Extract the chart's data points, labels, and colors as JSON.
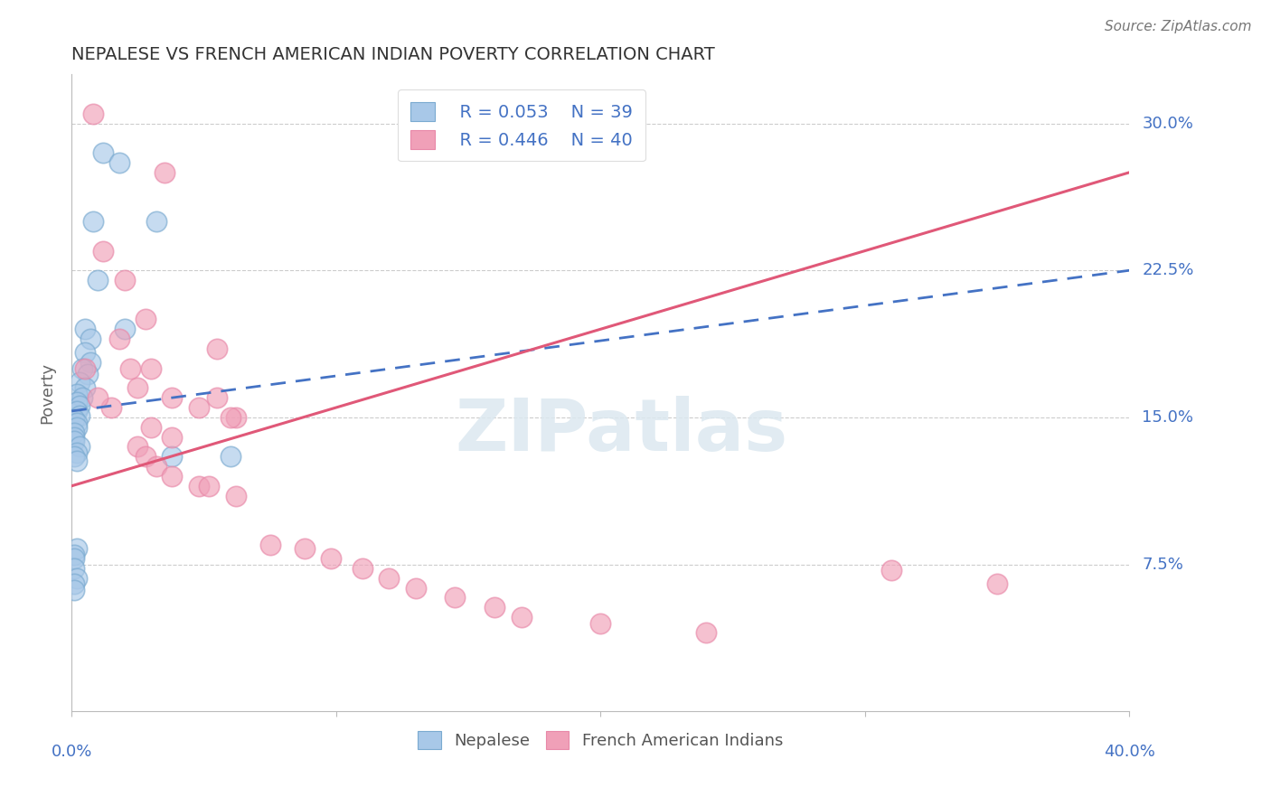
{
  "title": "NEPALESE VS FRENCH AMERICAN INDIAN POVERTY CORRELATION CHART",
  "source": "Source: ZipAtlas.com",
  "ylabel": "Poverty",
  "ytick_labels": [
    "7.5%",
    "15.0%",
    "22.5%",
    "30.0%"
  ],
  "ytick_values": [
    0.075,
    0.15,
    0.225,
    0.3
  ],
  "xlim": [
    0.0,
    0.4
  ],
  "ylim": [
    0.0,
    0.325
  ],
  "watermark_text": "ZIPatlas",
  "legend_blue_r": "R = 0.053",
  "legend_blue_n": "N = 39",
  "legend_pink_r": "R = 0.446",
  "legend_pink_n": "N = 40",
  "nepalese_x": [
    0.012,
    0.018,
    0.008,
    0.032,
    0.01,
    0.02,
    0.005,
    0.007,
    0.005,
    0.007,
    0.004,
    0.006,
    0.003,
    0.005,
    0.002,
    0.004,
    0.002,
    0.003,
    0.002,
    0.003,
    0.001,
    0.002,
    0.002,
    0.001,
    0.001,
    0.001,
    0.003,
    0.002,
    0.001,
    0.002,
    0.002,
    0.001,
    0.001,
    0.001,
    0.002,
    0.001,
    0.001,
    0.038,
    0.06
  ],
  "nepalese_y": [
    0.285,
    0.28,
    0.25,
    0.25,
    0.22,
    0.195,
    0.195,
    0.19,
    0.183,
    0.178,
    0.175,
    0.172,
    0.168,
    0.165,
    0.162,
    0.16,
    0.158,
    0.156,
    0.153,
    0.151,
    0.149,
    0.147,
    0.145,
    0.142,
    0.14,
    0.138,
    0.135,
    0.132,
    0.13,
    0.128,
    0.083,
    0.08,
    0.078,
    0.073,
    0.068,
    0.065,
    0.062,
    0.13,
    0.13
  ],
  "french_x": [
    0.008,
    0.035,
    0.005,
    0.012,
    0.02,
    0.028,
    0.03,
    0.018,
    0.025,
    0.022,
    0.015,
    0.01,
    0.038,
    0.048,
    0.055,
    0.062,
    0.03,
    0.038,
    0.055,
    0.06,
    0.025,
    0.028,
    0.032,
    0.038,
    0.048,
    0.052,
    0.062,
    0.075,
    0.088,
    0.098,
    0.11,
    0.12,
    0.13,
    0.145,
    0.16,
    0.17,
    0.2,
    0.24,
    0.31,
    0.35
  ],
  "french_y": [
    0.305,
    0.275,
    0.175,
    0.235,
    0.22,
    0.2,
    0.175,
    0.19,
    0.165,
    0.175,
    0.155,
    0.16,
    0.16,
    0.155,
    0.16,
    0.15,
    0.145,
    0.14,
    0.185,
    0.15,
    0.135,
    0.13,
    0.125,
    0.12,
    0.115,
    0.115,
    0.11,
    0.085,
    0.083,
    0.078,
    0.073,
    0.068,
    0.063,
    0.058,
    0.053,
    0.048,
    0.045,
    0.04,
    0.072,
    0.065
  ],
  "blue_fill": "#A8C8E8",
  "pink_fill": "#F0A0B8",
  "blue_edge": "#7AAAD0",
  "pink_edge": "#E888A8",
  "blue_line_color": "#4472C4",
  "pink_line_color": "#E05878",
  "background_color": "#FFFFFF",
  "grid_color": "#CCCCCC",
  "label_color": "#4472C4",
  "title_color": "#333333",
  "axis_color": "#BBBBBB"
}
